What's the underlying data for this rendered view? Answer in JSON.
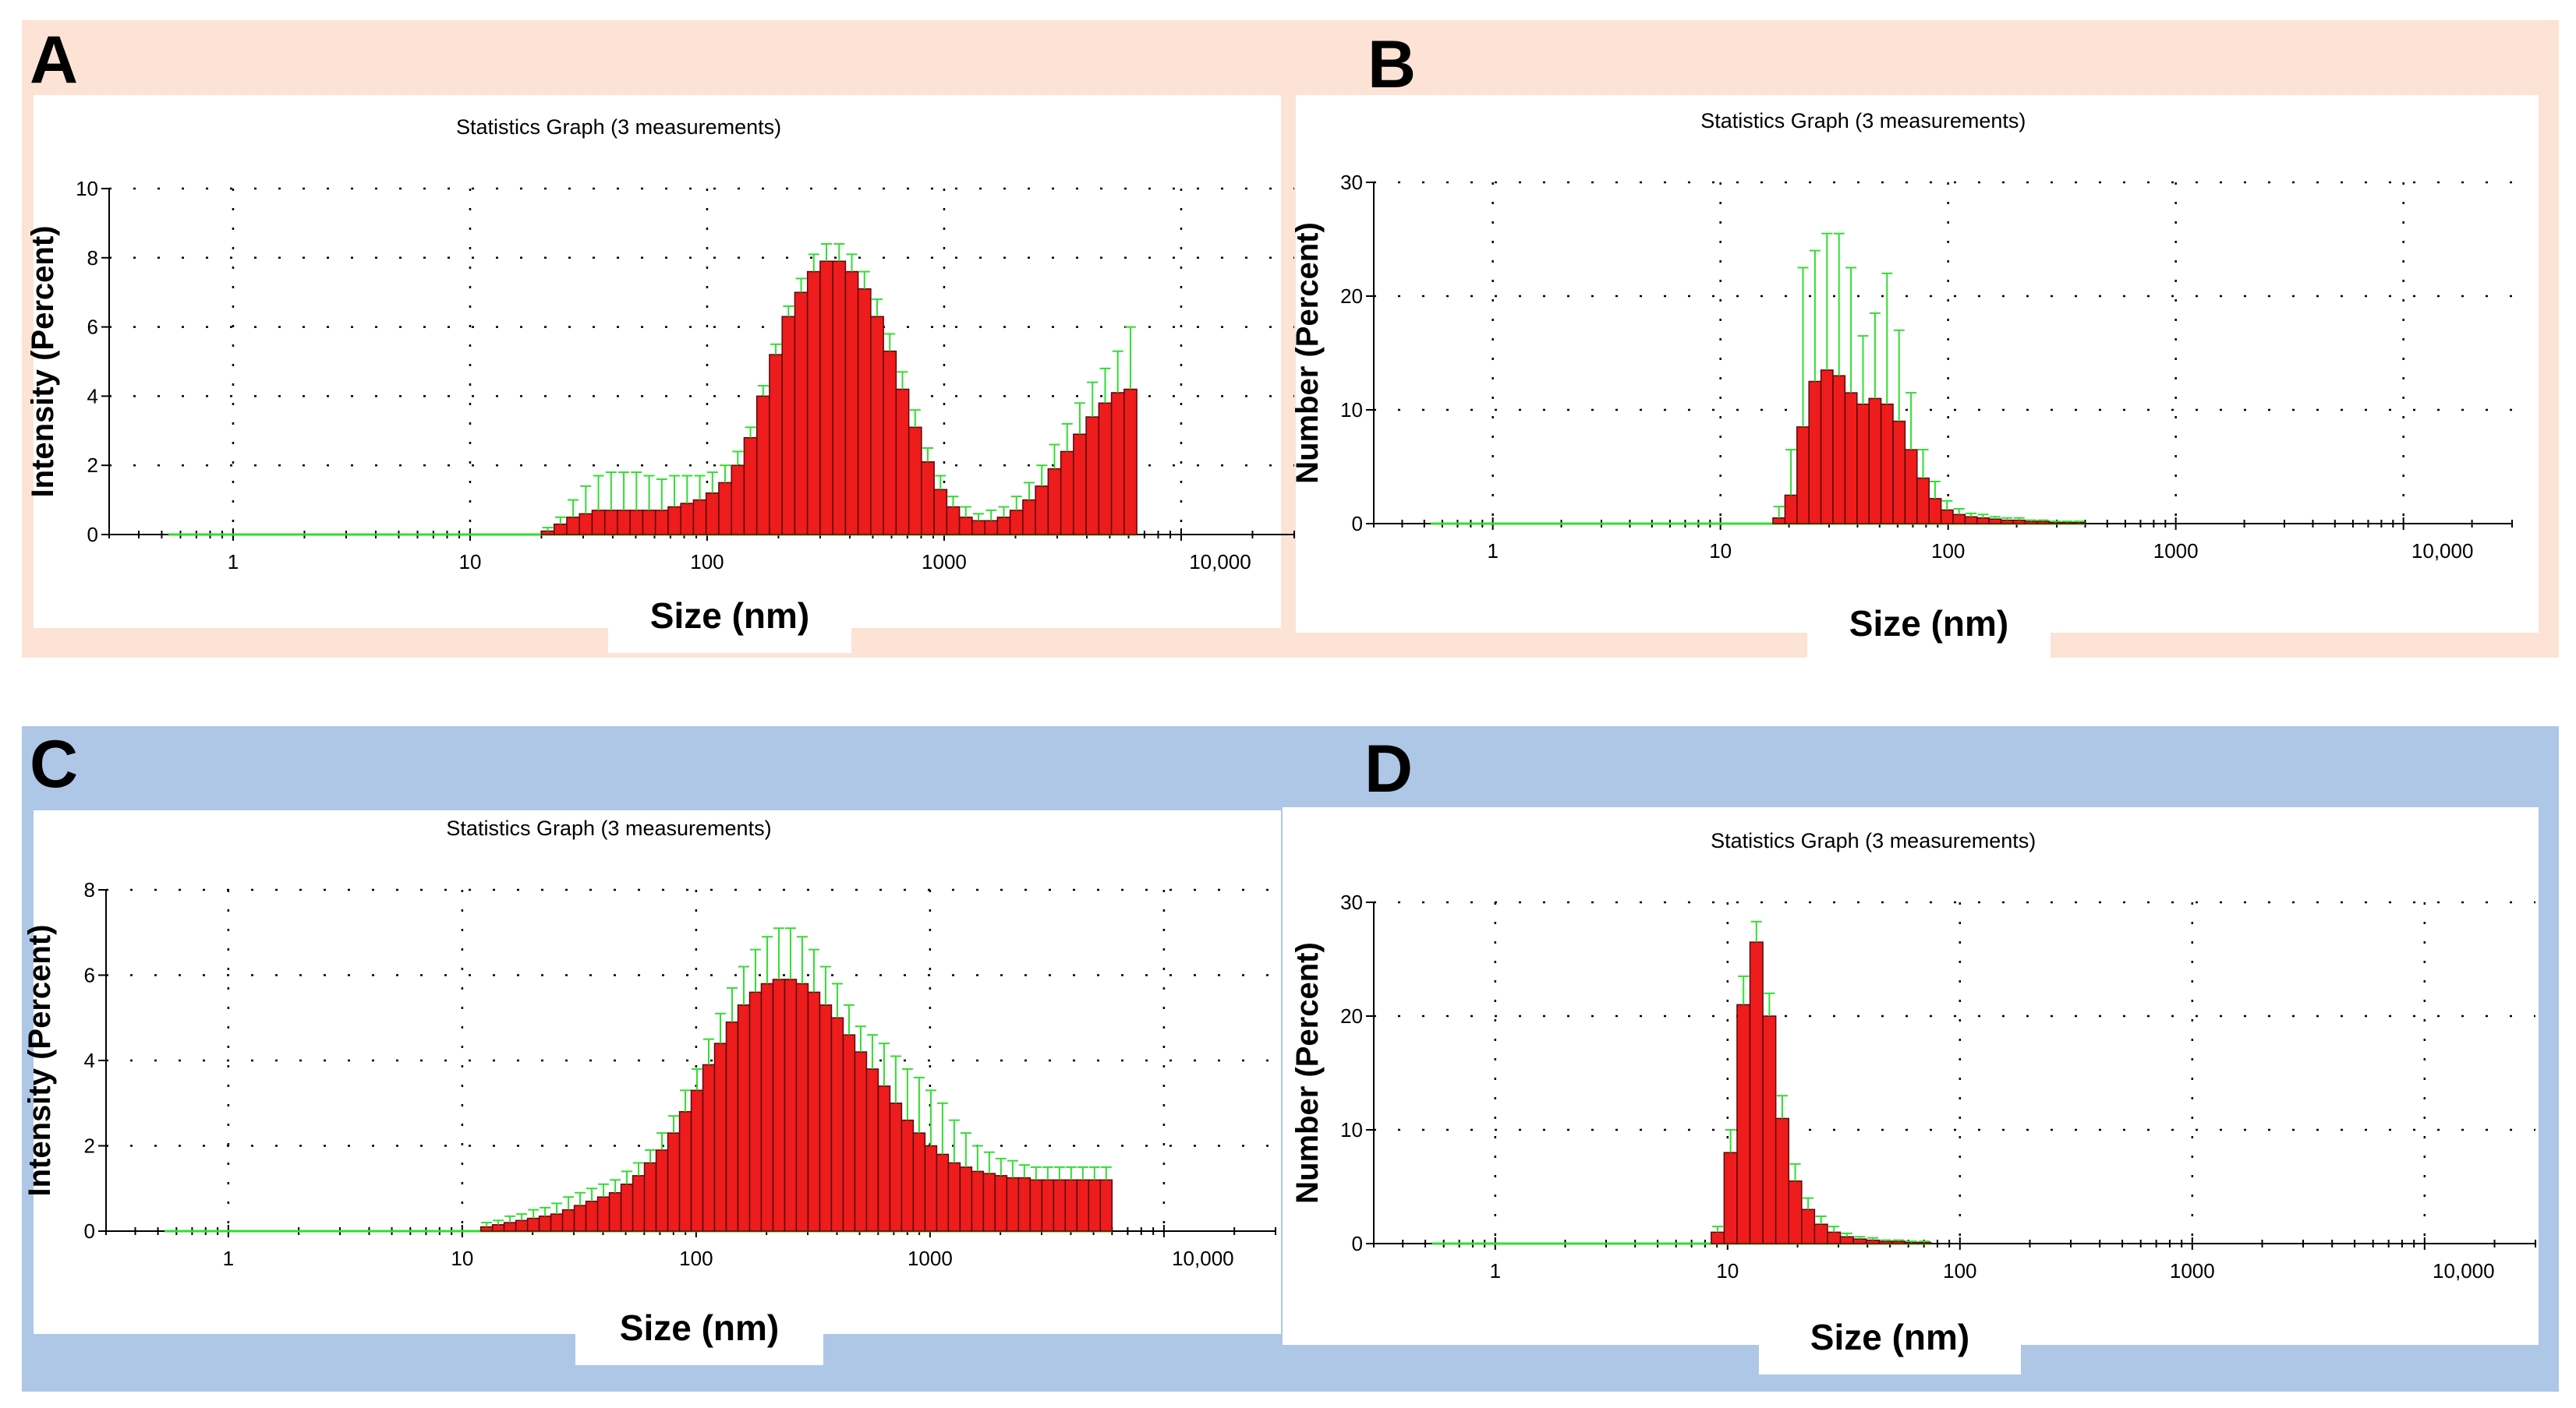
{
  "figure": {
    "colors": {
      "bar_fill": "#ee1c1c",
      "bar_edge": "#5a0a0a",
      "error_bar": "#33dd33",
      "band_top": "#fde3d5",
      "band_bottom": "#aec7e7"
    }
  },
  "panels": {
    "A": {
      "letter": "A"
    },
    "B": {
      "letter": "B"
    },
    "C": {
      "letter": "C"
    },
    "D": {
      "letter": "D"
    }
  },
  "chart_data": [
    {
      "id": "A",
      "type": "bar",
      "title": "Statistics Graph (3 measurements)",
      "xlabel": "Size (nm)",
      "ylabel": "Intensity (Percent)",
      "xscale": "log",
      "xlim": [
        0.3,
        30000
      ],
      "ylim": [
        0,
        10
      ],
      "yticks": [
        0,
        2,
        4,
        6,
        8,
        10
      ],
      "xticks": [
        {
          "v": 1,
          "label": "1"
        },
        {
          "v": 10,
          "label": "10"
        },
        {
          "v": 100,
          "label": "100"
        },
        {
          "v": 1000,
          "label": "1000"
        },
        {
          "v": 10000,
          "label": "10,000"
        }
      ],
      "grid": true,
      "bars": {
        "start": 20,
        "end": 6500,
        "n": 47,
        "values": [
          0.1,
          0.3,
          0.5,
          0.6,
          0.7,
          0.7,
          0.7,
          0.7,
          0.7,
          0.7,
          0.8,
          0.9,
          1.0,
          1.2,
          1.5,
          2.0,
          2.8,
          4.0,
          5.2,
          6.3,
          7.0,
          7.6,
          7.9,
          7.9,
          7.6,
          7.1,
          6.3,
          5.3,
          4.2,
          3.1,
          2.1,
          1.3,
          0.8,
          0.5,
          0.4,
          0.4,
          0.5,
          0.7,
          1.0,
          1.4,
          1.9,
          2.4,
          2.9,
          3.4,
          3.8,
          4.1,
          4.2
        ],
        "errors": [
          0.1,
          0.2,
          0.5,
          0.8,
          1.0,
          1.1,
          1.1,
          1.1,
          1.0,
          0.9,
          0.9,
          0.8,
          0.7,
          0.6,
          0.5,
          0.4,
          0.3,
          0.3,
          0.3,
          0.3,
          0.4,
          0.5,
          0.5,
          0.5,
          0.5,
          0.5,
          0.5,
          0.5,
          0.5,
          0.5,
          0.4,
          0.4,
          0.3,
          0.3,
          0.2,
          0.3,
          0.3,
          0.4,
          0.5,
          0.6,
          0.7,
          0.8,
          0.9,
          1.0,
          1.0,
          1.2,
          1.8
        ]
      }
    },
    {
      "id": "B",
      "type": "bar",
      "title": "Statistics Graph (3 measurements)",
      "xlabel": "Size (nm)",
      "ylabel": "Number (Percent)",
      "xscale": "log",
      "xlim": [
        0.3,
        30000
      ],
      "ylim": [
        0,
        30
      ],
      "yticks": [
        0,
        10,
        20,
        30
      ],
      "xticks": [
        {
          "v": 1,
          "label": "1"
        },
        {
          "v": 10,
          "label": "10"
        },
        {
          "v": 100,
          "label": "100"
        },
        {
          "v": 1000,
          "label": "1000"
        },
        {
          "v": 10000,
          "label": "10,000"
        }
      ],
      "grid": true,
      "bars": {
        "start": 17,
        "end": 400,
        "n": 26,
        "values": [
          0.5,
          2.5,
          8.5,
          12.5,
          13.5,
          13.0,
          11.5,
          10.5,
          11.0,
          10.5,
          9.0,
          6.5,
          4.0,
          2.2,
          1.2,
          0.8,
          0.6,
          0.5,
          0.4,
          0.3,
          0.3,
          0.2,
          0.2,
          0.1,
          0.1,
          0.1
        ],
        "errors": [
          1.0,
          4.0,
          14.0,
          11.5,
          12.0,
          12.5,
          11.0,
          6.0,
          7.5,
          11.5,
          8.0,
          5.0,
          2.5,
          1.5,
          0.8,
          0.5,
          0.3,
          0.3,
          0.2,
          0.2,
          0.2,
          0.1,
          0.1,
          0.1,
          0.1,
          0.1
        ]
      }
    },
    {
      "id": "C",
      "type": "bar",
      "title": "Statistics Graph (3 measurements)",
      "xlabel": "Size (nm)",
      "ylabel": "Intensity (Percent)",
      "xscale": "log",
      "xlim": [
        0.3,
        30000
      ],
      "ylim": [
        0,
        8
      ],
      "yticks": [
        0,
        2,
        4,
        6,
        8
      ],
      "xticks": [
        {
          "v": 1,
          "label": "1"
        },
        {
          "v": 10,
          "label": "10"
        },
        {
          "v": 100,
          "label": "100"
        },
        {
          "v": 1000,
          "label": "1000"
        },
        {
          "v": 10000,
          "label": "10,000"
        }
      ],
      "grid": true,
      "bars": {
        "start": 12,
        "end": 6000,
        "n": 54,
        "values": [
          0.1,
          0.15,
          0.2,
          0.25,
          0.3,
          0.35,
          0.4,
          0.5,
          0.6,
          0.7,
          0.8,
          0.9,
          1.1,
          1.3,
          1.6,
          1.9,
          2.3,
          2.8,
          3.3,
          3.9,
          4.4,
          4.9,
          5.3,
          5.6,
          5.8,
          5.9,
          5.9,
          5.8,
          5.6,
          5.3,
          5.0,
          4.6,
          4.2,
          3.8,
          3.4,
          3.0,
          2.6,
          2.3,
          2.0,
          1.8,
          1.6,
          1.5,
          1.4,
          1.35,
          1.3,
          1.25,
          1.25,
          1.2,
          1.2,
          1.2,
          1.2,
          1.2,
          1.2,
          1.2
        ],
        "errors": [
          0.1,
          0.1,
          0.15,
          0.15,
          0.2,
          0.2,
          0.25,
          0.3,
          0.3,
          0.3,
          0.3,
          0.3,
          0.3,
          0.3,
          0.3,
          0.4,
          0.4,
          0.5,
          0.5,
          0.6,
          0.7,
          0.8,
          0.9,
          1.0,
          1.1,
          1.2,
          1.2,
          1.1,
          1.0,
          0.9,
          0.8,
          0.7,
          0.6,
          0.8,
          1.0,
          1.1,
          1.2,
          1.3,
          1.3,
          1.2,
          1.0,
          0.8,
          0.6,
          0.5,
          0.4,
          0.4,
          0.3,
          0.3,
          0.3,
          0.3,
          0.3,
          0.3,
          0.3,
          0.3
        ]
      }
    },
    {
      "id": "D",
      "type": "bar",
      "title": "Statistics Graph (3 measurements)",
      "xlabel": "Size (nm)",
      "ylabel": "Number (Percent)",
      "xscale": "log",
      "xlim": [
        0.3,
        30000
      ],
      "ylim": [
        0,
        30
      ],
      "yticks": [
        0,
        10,
        20,
        30
      ],
      "xticks": [
        {
          "v": 1,
          "label": "1"
        },
        {
          "v": 10,
          "label": "10"
        },
        {
          "v": 100,
          "label": "100"
        },
        {
          "v": 1000,
          "label": "1000"
        },
        {
          "v": 10000,
          "label": "10,000"
        }
      ],
      "grid": true,
      "bars": {
        "start": 8.5,
        "end": 75,
        "n": 17,
        "values": [
          1.0,
          8.0,
          21.0,
          26.5,
          20.0,
          11.0,
          5.5,
          3.0,
          1.7,
          1.0,
          0.6,
          0.4,
          0.3,
          0.2,
          0.2,
          0.1,
          0.1
        ],
        "errors": [
          0.5,
          2.0,
          2.5,
          1.8,
          2.0,
          2.0,
          1.5,
          1.0,
          0.7,
          0.5,
          0.3,
          0.2,
          0.2,
          0.1,
          0.1,
          0.1,
          0.1
        ]
      }
    }
  ]
}
